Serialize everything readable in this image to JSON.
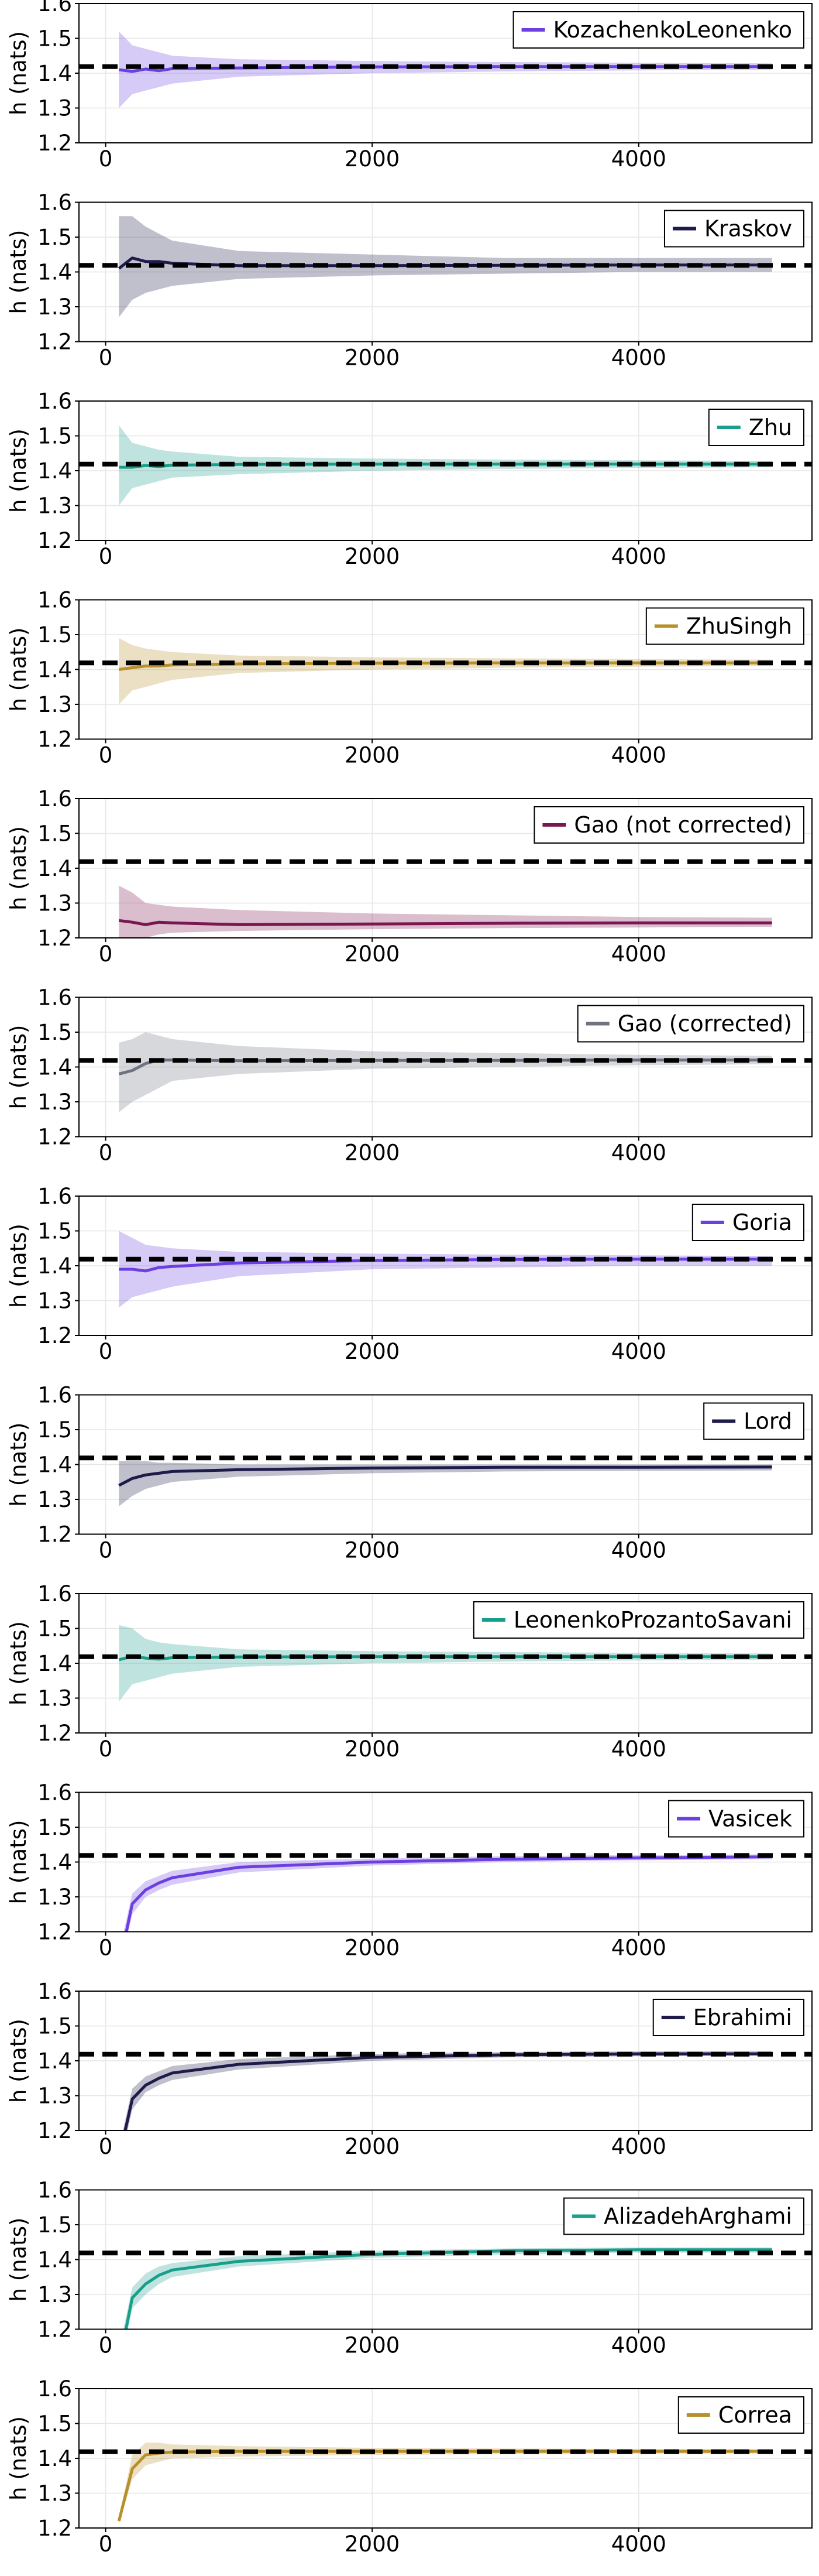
{
  "figure": {
    "ylabel": "h (nats)",
    "xlim": [
      -200,
      5300
    ],
    "ylim": [
      1.2,
      1.6
    ],
    "xticks": [
      0,
      2000,
      4000
    ],
    "yticks": [
      1.2,
      1.3,
      1.4,
      1.5,
      1.6
    ],
    "xtick_labels": [
      "0",
      "2000",
      "4000"
    ],
    "ytick_labels": [
      "1.2",
      "1.3",
      "1.4",
      "1.5",
      "1.6"
    ],
    "reference_value": 1.419,
    "reference_style": "black dashed horizontal line",
    "grid": true,
    "legend_position": "top-right"
  },
  "chart_data": [
    {
      "type": "line",
      "series": [
        {
          "name": "KozachenkoLeonenko",
          "color": "#6B3FE0",
          "x": [
            100,
            200,
            300,
            400,
            500,
            1000,
            2000,
            3000,
            4000,
            5000
          ],
          "y": [
            1.41,
            1.405,
            1.412,
            1.407,
            1.413,
            1.415,
            1.418,
            1.419,
            1.419,
            1.419
          ],
          "lower": [
            1.3,
            1.34,
            1.35,
            1.36,
            1.37,
            1.39,
            1.4,
            1.405,
            1.408,
            1.41
          ],
          "upper": [
            1.52,
            1.48,
            1.47,
            1.46,
            1.45,
            1.44,
            1.435,
            1.432,
            1.43,
            1.428
          ]
        }
      ]
    },
    {
      "type": "line",
      "series": [
        {
          "name": "Kraskov",
          "color": "#1E1B4B",
          "x": [
            100,
            200,
            300,
            400,
            500,
            1000,
            2000,
            3000,
            4000,
            5000
          ],
          "y": [
            1.41,
            1.44,
            1.43,
            1.43,
            1.425,
            1.418,
            1.418,
            1.419,
            1.42,
            1.42
          ],
          "lower": [
            1.27,
            1.32,
            1.34,
            1.35,
            1.36,
            1.38,
            1.39,
            1.395,
            1.4,
            1.4
          ],
          "upper": [
            1.56,
            1.56,
            1.53,
            1.51,
            1.49,
            1.46,
            1.45,
            1.44,
            1.44,
            1.44
          ]
        }
      ]
    },
    {
      "type": "line",
      "series": [
        {
          "name": "Zhu",
          "color": "#1A9E8C",
          "x": [
            100,
            200,
            300,
            400,
            500,
            1000,
            2000,
            3000,
            4000,
            5000
          ],
          "y": [
            1.41,
            1.41,
            1.415,
            1.412,
            1.416,
            1.418,
            1.419,
            1.419,
            1.419,
            1.419
          ],
          "lower": [
            1.3,
            1.35,
            1.36,
            1.37,
            1.38,
            1.39,
            1.4,
            1.405,
            1.408,
            1.41
          ],
          "upper": [
            1.53,
            1.48,
            1.47,
            1.46,
            1.455,
            1.44,
            1.435,
            1.432,
            1.43,
            1.428
          ]
        }
      ]
    },
    {
      "type": "line",
      "series": [
        {
          "name": "ZhuSingh",
          "color": "#B8902A",
          "x": [
            100,
            200,
            300,
            400,
            500,
            1000,
            2000,
            3000,
            4000,
            5000
          ],
          "y": [
            1.4,
            1.405,
            1.41,
            1.41,
            1.413,
            1.416,
            1.418,
            1.419,
            1.419,
            1.419
          ],
          "lower": [
            1.3,
            1.34,
            1.35,
            1.36,
            1.37,
            1.39,
            1.4,
            1.405,
            1.408,
            1.41
          ],
          "upper": [
            1.49,
            1.47,
            1.46,
            1.455,
            1.45,
            1.44,
            1.435,
            1.432,
            1.43,
            1.428
          ]
        }
      ]
    },
    {
      "type": "line",
      "series": [
        {
          "name": "Gao (not corrected)",
          "color": "#7A1650",
          "x": [
            100,
            200,
            300,
            400,
            500,
            1000,
            2000,
            3000,
            4000,
            5000
          ],
          "y": [
            1.25,
            1.245,
            1.238,
            1.245,
            1.243,
            1.238,
            1.24,
            1.242,
            1.243,
            1.243
          ],
          "lower": [
            1.2,
            1.2,
            1.2,
            1.21,
            1.215,
            1.22,
            1.225,
            1.228,
            1.23,
            1.232
          ],
          "upper": [
            1.35,
            1.33,
            1.3,
            1.295,
            1.29,
            1.28,
            1.27,
            1.265,
            1.26,
            1.258
          ]
        }
      ]
    },
    {
      "type": "line",
      "series": [
        {
          "name": "Gao (corrected)",
          "color": "#6E7281",
          "x": [
            100,
            200,
            300,
            400,
            500,
            1000,
            2000,
            3000,
            4000,
            5000
          ],
          "y": [
            1.38,
            1.39,
            1.41,
            1.42,
            1.42,
            1.418,
            1.419,
            1.419,
            1.42,
            1.42
          ],
          "lower": [
            1.27,
            1.3,
            1.32,
            1.34,
            1.36,
            1.38,
            1.395,
            1.4,
            1.405,
            1.408
          ],
          "upper": [
            1.47,
            1.48,
            1.5,
            1.49,
            1.48,
            1.46,
            1.445,
            1.44,
            1.435,
            1.432
          ]
        }
      ]
    },
    {
      "type": "line",
      "series": [
        {
          "name": "Goria",
          "color": "#6B3FE0",
          "x": [
            100,
            200,
            300,
            400,
            500,
            1000,
            2000,
            3000,
            4000,
            5000
          ],
          "y": [
            1.39,
            1.39,
            1.385,
            1.395,
            1.398,
            1.408,
            1.415,
            1.418,
            1.419,
            1.419
          ],
          "lower": [
            1.28,
            1.31,
            1.32,
            1.33,
            1.34,
            1.37,
            1.39,
            1.395,
            1.4,
            1.4
          ],
          "upper": [
            1.5,
            1.48,
            1.46,
            1.455,
            1.45,
            1.44,
            1.435,
            1.432,
            1.43,
            1.428
          ]
        }
      ]
    },
    {
      "type": "line",
      "series": [
        {
          "name": "Lord",
          "color": "#1E1B4B",
          "x": [
            100,
            200,
            300,
            400,
            500,
            1000,
            2000,
            3000,
            4000,
            5000
          ],
          "y": [
            1.34,
            1.36,
            1.37,
            1.375,
            1.38,
            1.385,
            1.39,
            1.392,
            1.392,
            1.393
          ],
          "lower": [
            1.28,
            1.31,
            1.33,
            1.34,
            1.35,
            1.365,
            1.375,
            1.38,
            1.382,
            1.383
          ],
          "upper": [
            1.41,
            1.41,
            1.41,
            1.405,
            1.405,
            1.4,
            1.4,
            1.4,
            1.4,
            1.4
          ]
        }
      ]
    },
    {
      "type": "line",
      "series": [
        {
          "name": "LeonenkoProzantoSavani",
          "color": "#1A9E8C",
          "x": [
            100,
            200,
            300,
            400,
            500,
            1000,
            2000,
            3000,
            4000,
            5000
          ],
          "y": [
            1.41,
            1.42,
            1.415,
            1.412,
            1.416,
            1.418,
            1.419,
            1.419,
            1.419,
            1.419
          ],
          "lower": [
            1.29,
            1.34,
            1.35,
            1.36,
            1.37,
            1.39,
            1.4,
            1.405,
            1.408,
            1.41
          ],
          "upper": [
            1.51,
            1.5,
            1.47,
            1.46,
            1.455,
            1.44,
            1.435,
            1.432,
            1.43,
            1.428
          ]
        }
      ]
    },
    {
      "type": "line",
      "series": [
        {
          "name": "Vasicek",
          "color": "#6B3FE0",
          "x": [
            100,
            200,
            300,
            400,
            500,
            1000,
            2000,
            3000,
            4000,
            5000
          ],
          "y": [
            1.1,
            1.28,
            1.32,
            1.34,
            1.355,
            1.385,
            1.4,
            1.408,
            1.412,
            1.415
          ],
          "lower": [
            1.08,
            1.25,
            1.3,
            1.32,
            1.335,
            1.37,
            1.39,
            1.4,
            1.405,
            1.408
          ],
          "upper": [
            1.14,
            1.31,
            1.345,
            1.36,
            1.375,
            1.4,
            1.41,
            1.417,
            1.42,
            1.422
          ]
        }
      ]
    },
    {
      "type": "line",
      "series": [
        {
          "name": "Ebrahimi",
          "color": "#1E1B4B",
          "x": [
            100,
            200,
            300,
            400,
            500,
            1000,
            2000,
            3000,
            4000,
            5000
          ],
          "y": [
            1.12,
            1.29,
            1.33,
            1.35,
            1.365,
            1.39,
            1.41,
            1.417,
            1.42,
            1.42
          ],
          "lower": [
            1.09,
            1.26,
            1.31,
            1.33,
            1.345,
            1.375,
            1.4,
            1.41,
            1.413,
            1.415
          ],
          "upper": [
            1.15,
            1.32,
            1.355,
            1.37,
            1.385,
            1.405,
            1.42,
            1.425,
            1.427,
            1.428
          ]
        }
      ]
    },
    {
      "type": "line",
      "series": [
        {
          "name": "AlizadehArghami",
          "color": "#1A9E8C",
          "x": [
            100,
            200,
            300,
            400,
            500,
            1000,
            2000,
            3000,
            4000,
            5000
          ],
          "y": [
            1.1,
            1.29,
            1.33,
            1.355,
            1.37,
            1.395,
            1.415,
            1.425,
            1.428,
            1.428
          ],
          "lower": [
            1.07,
            1.26,
            1.3,
            1.33,
            1.35,
            1.38,
            1.405,
            1.415,
            1.42,
            1.42
          ],
          "upper": [
            1.14,
            1.32,
            1.36,
            1.38,
            1.39,
            1.41,
            1.425,
            1.432,
            1.435,
            1.435
          ]
        }
      ]
    },
    {
      "type": "line",
      "series": [
        {
          "name": "Correa",
          "color": "#B8902A",
          "x": [
            100,
            200,
            300,
            400,
            500,
            1000,
            2000,
            3000,
            4000,
            5000
          ],
          "y": [
            1.22,
            1.37,
            1.41,
            1.415,
            1.418,
            1.42,
            1.42,
            1.42,
            1.42,
            1.42
          ],
          "lower": [
            1.21,
            1.34,
            1.38,
            1.39,
            1.4,
            1.405,
            1.41,
            1.412,
            1.413,
            1.414
          ],
          "upper": [
            1.23,
            1.41,
            1.445,
            1.445,
            1.44,
            1.435,
            1.43,
            1.428,
            1.427,
            1.426
          ]
        }
      ]
    }
  ]
}
